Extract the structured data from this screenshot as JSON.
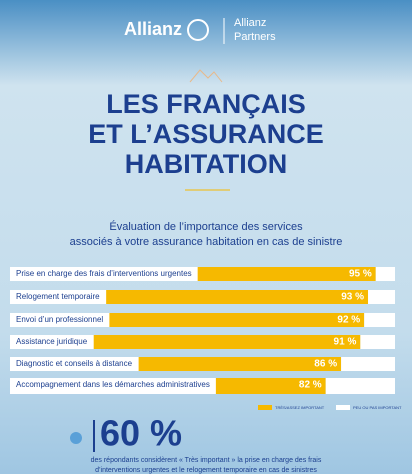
{
  "header": {
    "brand": "Allianz",
    "partner_lines": [
      "Allianz",
      "Partners"
    ]
  },
  "title_lines": [
    "LES FRANÇAIS",
    "ET L’ASSURANCE",
    "HABITATION"
  ],
  "chart_data": {
    "type": "bar",
    "orientation": "horizontal",
    "stacked": true,
    "subtitle_lines": [
      "Évaluation de l’importance des services",
      "associés à votre assurance habitation en cas de sinistre"
    ],
    "categories": [
      "Prise en charge des frais d’interventions urgentes",
      "Relogement temporaire",
      "Envoi d’un professionnel",
      "Assistance juridique",
      "Diagnostic et conseils à distance",
      "Accompagnement dans les démarches administratives"
    ],
    "xlim": [
      0,
      100
    ],
    "series": [
      {
        "name": "TRÈS/ASSEZ IMPORTANT",
        "color": "#f6b900",
        "values": [
          95,
          93,
          92,
          91,
          86,
          82
        ],
        "value_labels": [
          "95 %",
          "93 %",
          "92 %",
          "91 %",
          "86 %",
          "82 %"
        ]
      },
      {
        "name": "PEU OU PAS IMPORTANT",
        "color": "#ffffff",
        "values": [
          5,
          7,
          8,
          9,
          14,
          18
        ]
      }
    ],
    "legend": "bottom-right"
  },
  "footer": {
    "stat": "60 %",
    "text_lines": [
      "des répondants considèrent « Très important » la prise en charge des frais",
      "d’interventions urgentes et le relogement temporaire en cas de sinistres"
    ]
  }
}
